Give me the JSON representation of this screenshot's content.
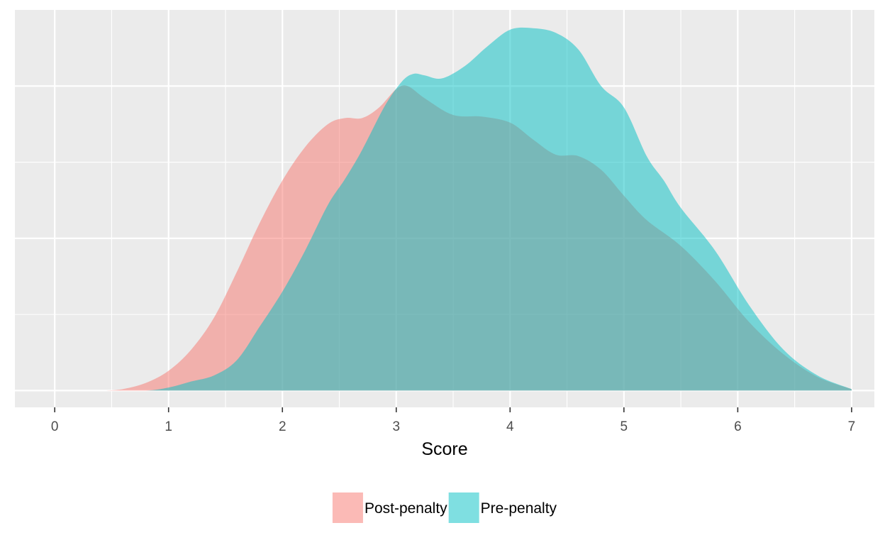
{
  "chart_data": {
    "type": "area",
    "subtype": "density",
    "title": "",
    "xlabel": "Score",
    "ylabel": "",
    "xlim": [
      -0.35,
      7.2
    ],
    "ylim": [
      -0.11,
      2.5
    ],
    "x_ticks": [
      0,
      1,
      2,
      3,
      4,
      5,
      6,
      7
    ],
    "x_tick_labels": [
      "0",
      "1",
      "2",
      "3",
      "4",
      "5",
      "6",
      "7"
    ],
    "y_major_gridlines": [
      0,
      1,
      2
    ],
    "y_tick_labels_shown": false,
    "grid": true,
    "panel_background": "#ebebeb",
    "legend": {
      "position": "bottom",
      "direction": "horizontal"
    },
    "series": [
      {
        "name": "Post-penalty",
        "color": "#f8766d",
        "fill_alpha": 0.5,
        "x": [
          0.45,
          0.6,
          0.8,
          1.0,
          1.2,
          1.4,
          1.6,
          1.8,
          2.0,
          2.2,
          2.4,
          2.55,
          2.7,
          2.85,
          3.0,
          3.1,
          3.25,
          3.5,
          3.75,
          4.0,
          4.2,
          4.4,
          4.6,
          4.8,
          5.0,
          5.2,
          5.5,
          5.8,
          6.1,
          6.4,
          6.7,
          7.0
        ],
        "y": [
          0.0,
          0.01,
          0.05,
          0.13,
          0.27,
          0.48,
          0.78,
          1.1,
          1.38,
          1.6,
          1.75,
          1.79,
          1.79,
          1.86,
          1.98,
          2.0,
          1.92,
          1.81,
          1.8,
          1.76,
          1.65,
          1.55,
          1.54,
          1.45,
          1.28,
          1.12,
          0.95,
          0.72,
          0.45,
          0.24,
          0.09,
          0.01
        ]
      },
      {
        "name": "Pre-penalty",
        "color": "#00bfc4",
        "fill_alpha": 0.5,
        "x": [
          0.45,
          0.8,
          1.0,
          1.2,
          1.4,
          1.6,
          1.8,
          2.0,
          2.2,
          2.4,
          2.55,
          2.7,
          2.9,
          3.05,
          3.15,
          3.25,
          3.4,
          3.6,
          3.8,
          4.0,
          4.2,
          4.4,
          4.6,
          4.8,
          5.0,
          5.2,
          5.35,
          5.5,
          5.8,
          6.1,
          6.4,
          6.7,
          7.0
        ],
        "y": [
          0.0,
          0.0,
          0.02,
          0.06,
          0.1,
          0.2,
          0.42,
          0.65,
          0.92,
          1.22,
          1.39,
          1.58,
          1.87,
          2.03,
          2.08,
          2.07,
          2.05,
          2.13,
          2.26,
          2.37,
          2.38,
          2.35,
          2.24,
          2.0,
          1.86,
          1.54,
          1.38,
          1.2,
          0.92,
          0.56,
          0.27,
          0.1,
          0.01
        ]
      }
    ]
  }
}
